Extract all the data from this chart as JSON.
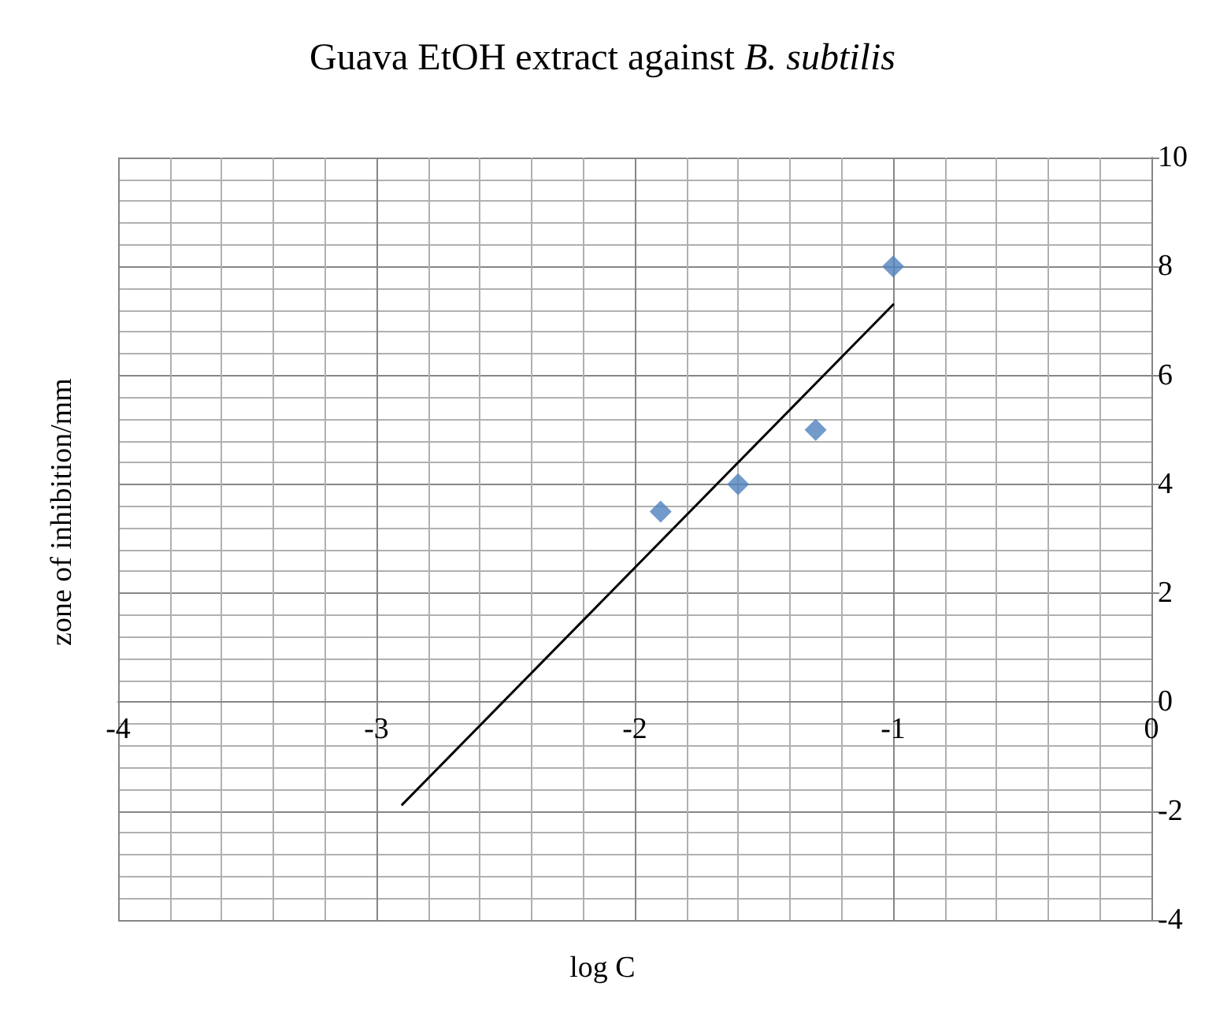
{
  "chart_data": {
    "type": "scatter",
    "title": "Guava EtOH extract against B. subtilis",
    "xlabel": "log C",
    "ylabel": "zone of inhibition/mm",
    "series": [
      {
        "color": "#4f81bd",
        "marker": "diamond",
        "x": [
          -1.9,
          -1.6,
          -1.3,
          -1.0
        ],
        "values": [
          3.5,
          4,
          5,
          8
        ]
      },
      {
        "type": "line",
        "color": "#000000",
        "marker": "none",
        "line_style": "solid",
        "x": [
          -2.9,
          -1.0
        ],
        "values": [
          -1.88,
          7.3
        ]
      }
    ],
    "xlim": [
      -4,
      0
    ],
    "xticks": [
      -4,
      -3,
      -2,
      -1,
      0
    ],
    "ylim": [
      -4,
      10
    ],
    "yticks": [
      -4,
      -2,
      0,
      2,
      4,
      6,
      8,
      10
    ],
    "grid": true
  }
}
